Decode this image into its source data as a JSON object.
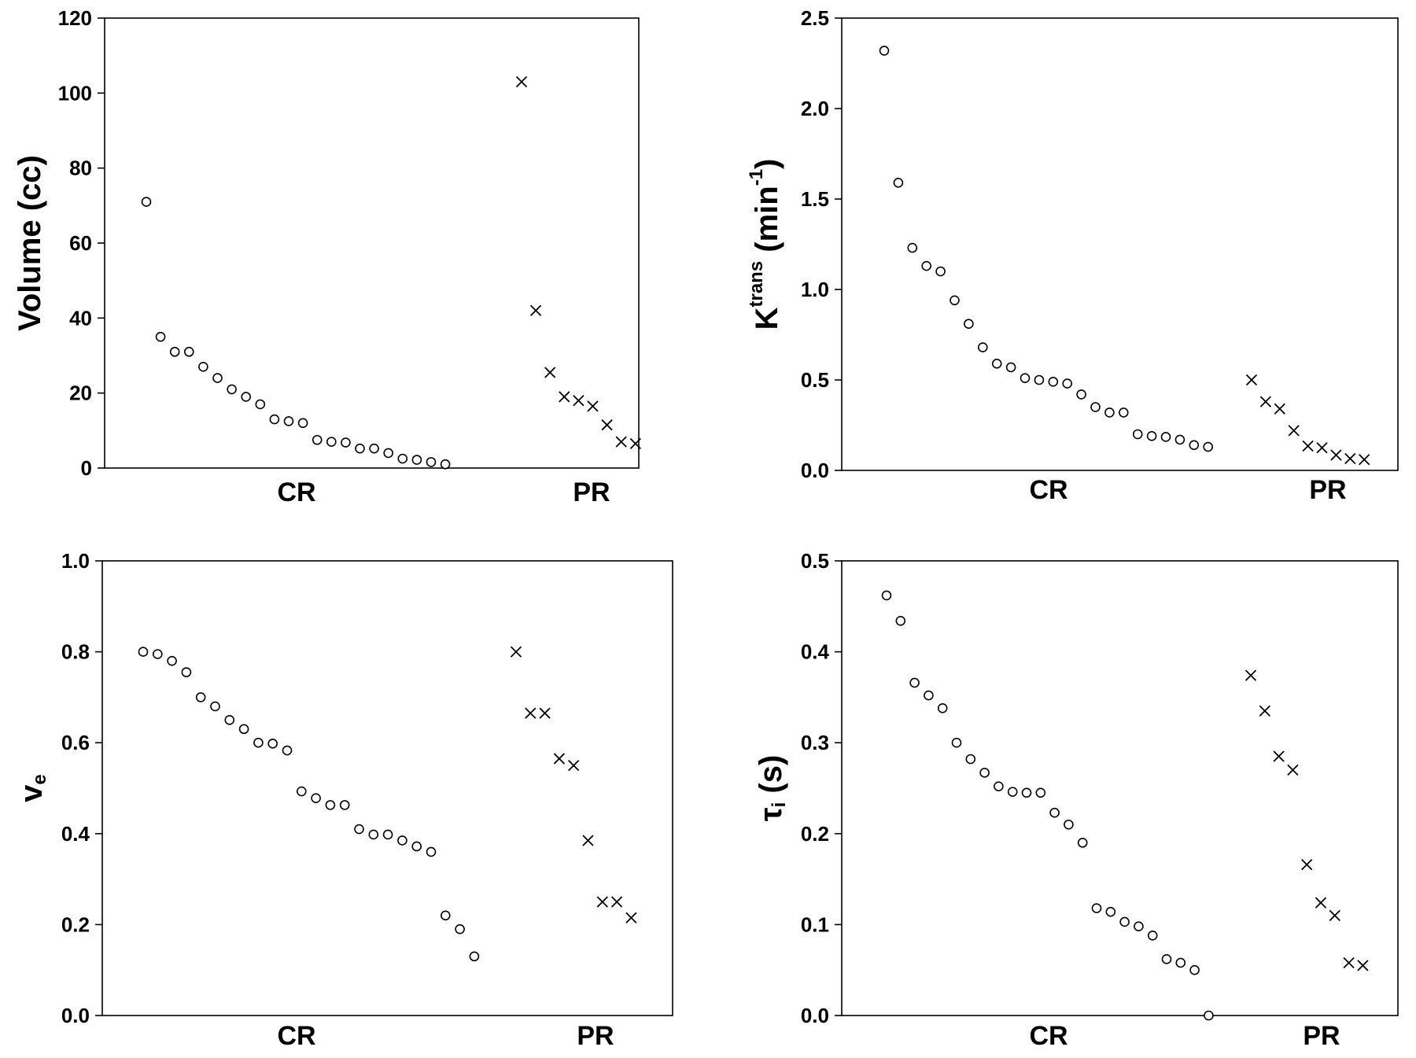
{
  "chart_data": [
    {
      "type": "scatter",
      "ylabel": "Volume (cc)",
      "ylim": [
        0,
        120
      ],
      "yticks": [
        "0",
        "20",
        "40",
        "60",
        "80",
        "100",
        "120"
      ],
      "categories": [
        "CR",
        "PR"
      ],
      "series": [
        {
          "marker": "circle",
          "values": [
            71,
            35,
            31,
            31,
            27,
            24,
            21,
            19,
            17,
            13,
            12.5,
            12,
            7.5,
            7,
            6.8,
            5.2,
            5.2,
            4,
            2.5,
            2.2,
            1.6,
            1
          ]
        },
        {
          "marker": "x",
          "values": [
            103,
            42,
            25.5,
            19,
            18,
            16.5,
            11.5,
            7,
            6.5
          ]
        }
      ]
    },
    {
      "type": "scatter",
      "ylabel": "Ktrans (min-1)",
      "ylabel_parts": {
        "base": "K",
        "sup": "trans",
        "mid": " (min",
        "exp": "-1",
        "end": ")"
      },
      "ylim": [
        0,
        2.5
      ],
      "yticks": [
        "0.0",
        "0.5",
        "1.0",
        "1.5",
        "2.0",
        "2.5"
      ],
      "categories": [
        "CR",
        "PR"
      ],
      "series": [
        {
          "marker": "circle",
          "values": [
            2.32,
            1.59,
            1.23,
            1.13,
            1.1,
            0.94,
            0.81,
            0.68,
            0.59,
            0.57,
            0.51,
            0.5,
            0.49,
            0.48,
            0.42,
            0.35,
            0.32,
            0.32,
            0.2,
            0.19,
            0.185,
            0.17,
            0.14,
            0.13
          ]
        },
        {
          "marker": "x",
          "values": [
            0.5,
            0.38,
            0.34,
            0.22,
            0.135,
            0.125,
            0.085,
            0.065,
            0.06
          ]
        }
      ]
    },
    {
      "type": "scatter",
      "ylabel": "ve",
      "ylabel_parts": {
        "base": "v",
        "sub": "e"
      },
      "ylim": [
        0,
        1.0
      ],
      "yticks": [
        "0.0",
        "0.2",
        "0.4",
        "0.6",
        "0.8",
        "1.0"
      ],
      "categories": [
        "CR",
        "PR"
      ],
      "series": [
        {
          "marker": "circle",
          "values": [
            0.8,
            0.795,
            0.78,
            0.755,
            0.7,
            0.68,
            0.65,
            0.63,
            0.6,
            0.598,
            0.583,
            0.493,
            0.478,
            0.463,
            0.463,
            0.41,
            0.398,
            0.398,
            0.385,
            0.372,
            0.36,
            0.22,
            0.19,
            0.13
          ]
        },
        {
          "marker": "x",
          "values": [
            0.8,
            0.665,
            0.665,
            0.565,
            0.55,
            0.385,
            0.25,
            0.25,
            0.215
          ]
        }
      ]
    },
    {
      "type": "scatter",
      "ylabel": "τi (s)",
      "ylabel_parts": {
        "base": "τ",
        "sub": "i",
        "end": " (s)"
      },
      "ylim": [
        0,
        0.5
      ],
      "yticks": [
        "0.0",
        "0.1",
        "0.2",
        "0.3",
        "0.4",
        "0.5"
      ],
      "categories": [
        "CR",
        "PR"
      ],
      "series": [
        {
          "marker": "circle",
          "values": [
            0.462,
            0.434,
            0.366,
            0.352,
            0.338,
            0.3,
            0.282,
            0.267,
            0.252,
            0.246,
            0.245,
            0.245,
            0.223,
            0.21,
            0.19,
            0.118,
            0.114,
            0.103,
            0.098,
            0.088,
            0.062,
            0.058,
            0.05,
            0
          ]
        },
        {
          "marker": "x",
          "values": [
            0.374,
            0.335,
            0.285,
            0.27,
            0.166,
            0.124,
            0.11,
            0.058,
            0.055
          ]
        }
      ]
    }
  ]
}
